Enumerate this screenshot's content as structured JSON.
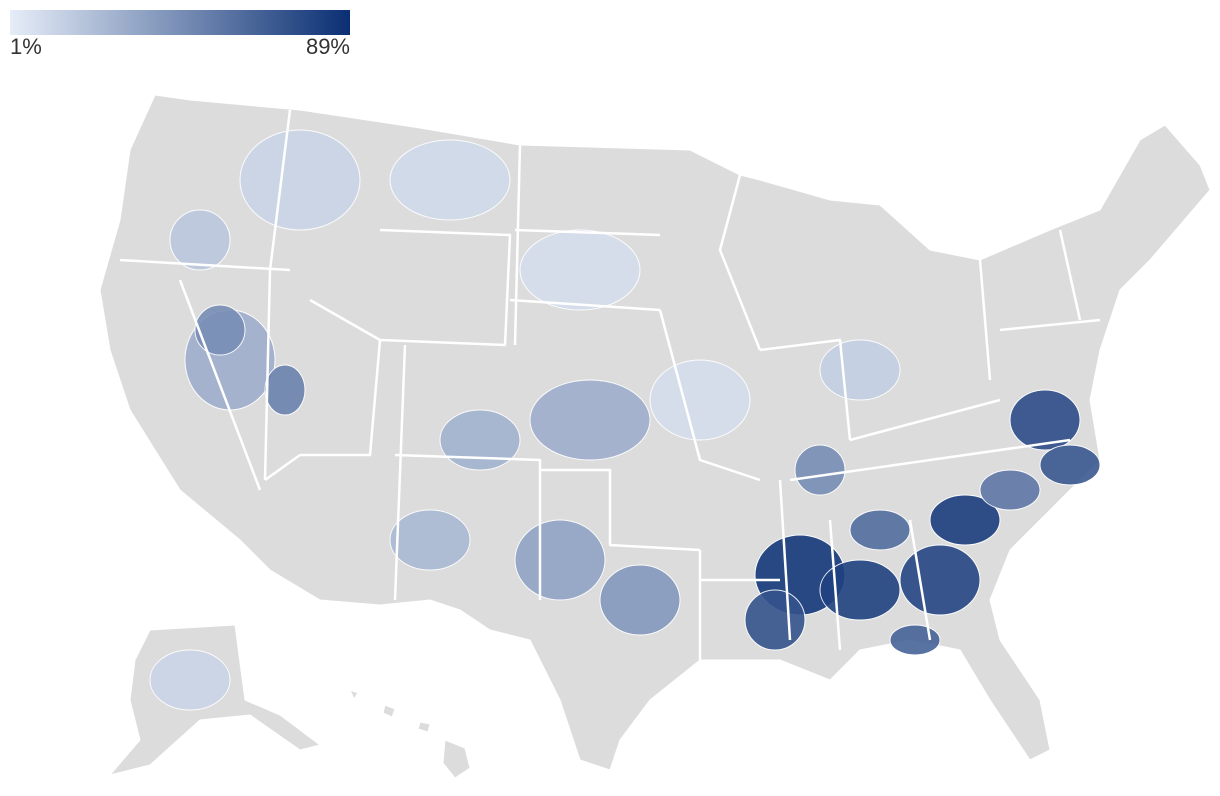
{
  "map": {
    "colorscale": {
      "min": {
        "value": 1,
        "label": "1%"
      },
      "max": {
        "value": 89,
        "label": "89%"
      },
      "colors": [
        "#e6edf8",
        "#0a2f73"
      ]
    },
    "regions": [
      85,
      80,
      78,
      82,
      75,
      70,
      72,
      65,
      60,
      55,
      45,
      40,
      35,
      30,
      28,
      25,
      12,
      10,
      8,
      8,
      15,
      18,
      30,
      45,
      50,
      12
    ]
  }
}
